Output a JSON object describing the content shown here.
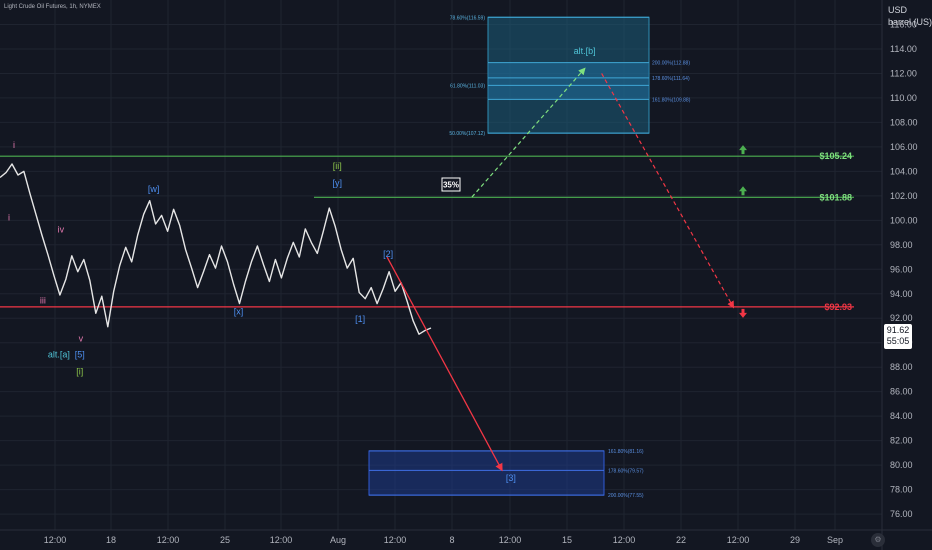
{
  "chart_title": "Light Crude Oil Futures, 1h, NYMEX",
  "price_axis_units": [
    "USD",
    "barrel (US)"
  ],
  "last_price": {
    "value": "91.62",
    "countdown": "55:05"
  },
  "colors": {
    "background": "#131722",
    "grid": "#1f2430",
    "price_line": "#e6e6e6",
    "green_level": "#4caf50",
    "red_level": "#f23645",
    "fib_upper_fill": "#1c5c7a",
    "fib_lower_fill": "#1e3a8a",
    "wave_blue": "#4e8ff0",
    "wave_green": "#8bc34a",
    "wave_pink": "#e57ab0",
    "wave_cyan": "#4fc3d6"
  },
  "chart_data": {
    "type": "line",
    "title": "",
    "xlabel": "",
    "ylabel": "USD barrel (US)",
    "ylim": [
      74.7,
      118.0
    ],
    "yticks": [
      "116.00",
      "114.00",
      "112.00",
      "110.00",
      "108.00",
      "106.00",
      "104.00",
      "102.00",
      "100.00",
      "98.00",
      "96.00",
      "94.00",
      "92.00",
      "90.00",
      "88.00",
      "86.00",
      "84.00",
      "82.00",
      "80.00",
      "78.00",
      "76.00"
    ],
    "xticks": [
      "12:00",
      "18",
      "12:00",
      "25",
      "12:00",
      "Aug",
      "12:00",
      "8",
      "12:00",
      "15",
      "12:00",
      "22",
      "12:00",
      "29",
      "Sep"
    ],
    "x_domain": [
      0,
      88.4
    ],
    "series": [
      {
        "values": [
          [
            0,
            103.5
          ],
          [
            0.6,
            103.9
          ],
          [
            1.2,
            104.6
          ],
          [
            1.8,
            103.7
          ],
          [
            2.4,
            104.0
          ],
          [
            3.0,
            102.2
          ],
          [
            3.6,
            100.5
          ],
          [
            4.2,
            98.8
          ],
          [
            4.8,
            97.2
          ],
          [
            5.4,
            95.5
          ],
          [
            6.0,
            93.9
          ],
          [
            6.6,
            95.2
          ],
          [
            7.2,
            97.1
          ],
          [
            7.8,
            95.8
          ],
          [
            8.4,
            96.8
          ],
          [
            9.0,
            95.1
          ],
          [
            9.6,
            92.4
          ],
          [
            10.2,
            93.8
          ],
          [
            10.8,
            91.3
          ],
          [
            11.4,
            94.2
          ],
          [
            12.0,
            96.3
          ],
          [
            12.6,
            97.8
          ],
          [
            13.2,
            96.6
          ],
          [
            13.8,
            98.8
          ],
          [
            14.4,
            100.5
          ],
          [
            15.0,
            101.6
          ],
          [
            15.6,
            99.7
          ],
          [
            16.2,
            100.4
          ],
          [
            16.8,
            99.1
          ],
          [
            17.4,
            100.9
          ],
          [
            18.0,
            99.6
          ],
          [
            18.6,
            97.6
          ],
          [
            19.2,
            96.1
          ],
          [
            19.8,
            94.5
          ],
          [
            20.4,
            95.8
          ],
          [
            21.0,
            97.2
          ],
          [
            21.6,
            96.1
          ],
          [
            22.2,
            97.9
          ],
          [
            22.8,
            96.6
          ],
          [
            23.4,
            94.8
          ],
          [
            24.0,
            93.2
          ],
          [
            24.6,
            95.0
          ],
          [
            25.2,
            96.6
          ],
          [
            25.8,
            97.9
          ],
          [
            26.4,
            96.4
          ],
          [
            27.0,
            95.0
          ],
          [
            27.6,
            96.8
          ],
          [
            28.2,
            95.3
          ],
          [
            28.8,
            96.9
          ],
          [
            29.4,
            98.2
          ],
          [
            30.0,
            97.0
          ],
          [
            30.6,
            99.3
          ],
          [
            31.2,
            98.2
          ],
          [
            31.8,
            97.3
          ],
          [
            32.4,
            99.1
          ],
          [
            33.0,
            101.0
          ],
          [
            33.6,
            99.5
          ],
          [
            34.2,
            97.6
          ],
          [
            34.8,
            96.1
          ],
          [
            35.4,
            96.9
          ],
          [
            36.0,
            94.1
          ],
          [
            36.6,
            93.6
          ],
          [
            37.2,
            94.5
          ],
          [
            37.8,
            93.2
          ],
          [
            38.4,
            94.4
          ],
          [
            39.0,
            95.8
          ],
          [
            39.6,
            94.2
          ],
          [
            40.2,
            94.9
          ],
          [
            40.8,
            93.4
          ],
          [
            41.4,
            91.8
          ],
          [
            42.0,
            90.7
          ],
          [
            42.6,
            91.0
          ],
          [
            43.2,
            91.2
          ]
        ]
      }
    ],
    "levels": [
      {
        "price": 105.24,
        "label": "$105.24"
      },
      {
        "price": 101.88,
        "label": "$101.88"
      },
      {
        "price": 92.93,
        "label": "$92.93"
      }
    ],
    "fib_upper": {
      "top": 116.59,
      "bottom": 107.12,
      "lines": [
        {
          "price": 116.59,
          "label": "78.60%(116.59)",
          "side": "left"
        },
        {
          "price": 112.88,
          "label": "200.00%(112.88)",
          "side": "right"
        },
        {
          "price": 111.64,
          "label": "178.60%(111.64)",
          "side": "right"
        },
        {
          "price": 111.03,
          "label": "61.80%(111.03)",
          "side": "left"
        },
        {
          "price": 109.88,
          "label": "161.80%(109.88)",
          "side": "right"
        },
        {
          "price": 107.12,
          "label": "50.00%(107.12)",
          "side": "left"
        }
      ]
    },
    "fib_lower": {
      "top": 81.16,
      "bottom": 77.55,
      "lines": [
        {
          "price": 81.16,
          "label": "161.80%(81.16)"
        },
        {
          "price": 79.57,
          "label": "178.60%(79.57)"
        },
        {
          "price": 77.55,
          "label": "200.00%(77.55)"
        }
      ]
    },
    "wave_labels": [
      {
        "text": "i",
        "x": 1.4,
        "y": 105.9,
        "color": "wave_pink"
      },
      {
        "text": "i",
        "x": 0.9,
        "y": 100.0,
        "color": "wave_pink"
      },
      {
        "text": "iv",
        "x": 6.1,
        "y": 99.0,
        "color": "wave_pink"
      },
      {
        "text": "iii",
        "x": 4.3,
        "y": 93.2,
        "color": "wave_pink"
      },
      {
        "text": "v",
        "x": 8.1,
        "y": 90.1,
        "color": "wave_pink"
      },
      {
        "text": "alt.[a]",
        "x": 5.9,
        "y": 88.8,
        "color": "wave_cyan"
      },
      {
        "text": "[5]",
        "x": 8.0,
        "y": 88.8,
        "color": "wave_blue"
      },
      {
        "text": "[i]",
        "x": 8.0,
        "y": 87.4,
        "color": "wave_green"
      },
      {
        "text": "[w]",
        "x": 15.4,
        "y": 102.3,
        "color": "wave_blue"
      },
      {
        "text": "[x]",
        "x": 23.9,
        "y": 92.3,
        "color": "wave_blue"
      },
      {
        "text": "[ii]",
        "x": 33.8,
        "y": 104.2,
        "color": "wave_green"
      },
      {
        "text": "[y]",
        "x": 33.8,
        "y": 102.8,
        "color": "wave_blue"
      },
      {
        "text": "[1]",
        "x": 36.1,
        "y": 91.7,
        "color": "wave_blue"
      },
      {
        "text": "[2]",
        "x": 38.9,
        "y": 97.0,
        "color": "wave_blue"
      },
      {
        "text": "alt.[b]",
        "x": 58.6,
        "y": 113.6,
        "color": "wave_cyan"
      },
      {
        "text": "[3]",
        "x": 51.2,
        "y": 78.7,
        "color": "wave_blue"
      }
    ],
    "probability_label": "35%",
    "green_path": [
      [
        47.3,
        101.9
      ],
      [
        58.6,
        112.4
      ]
    ],
    "red_path_upper": [
      [
        60.3,
        112.0
      ],
      [
        73.5,
        92.9
      ]
    ],
    "red_path_lower": [
      [
        38.8,
        97.0
      ],
      [
        50.3,
        79.6
      ]
    ]
  }
}
